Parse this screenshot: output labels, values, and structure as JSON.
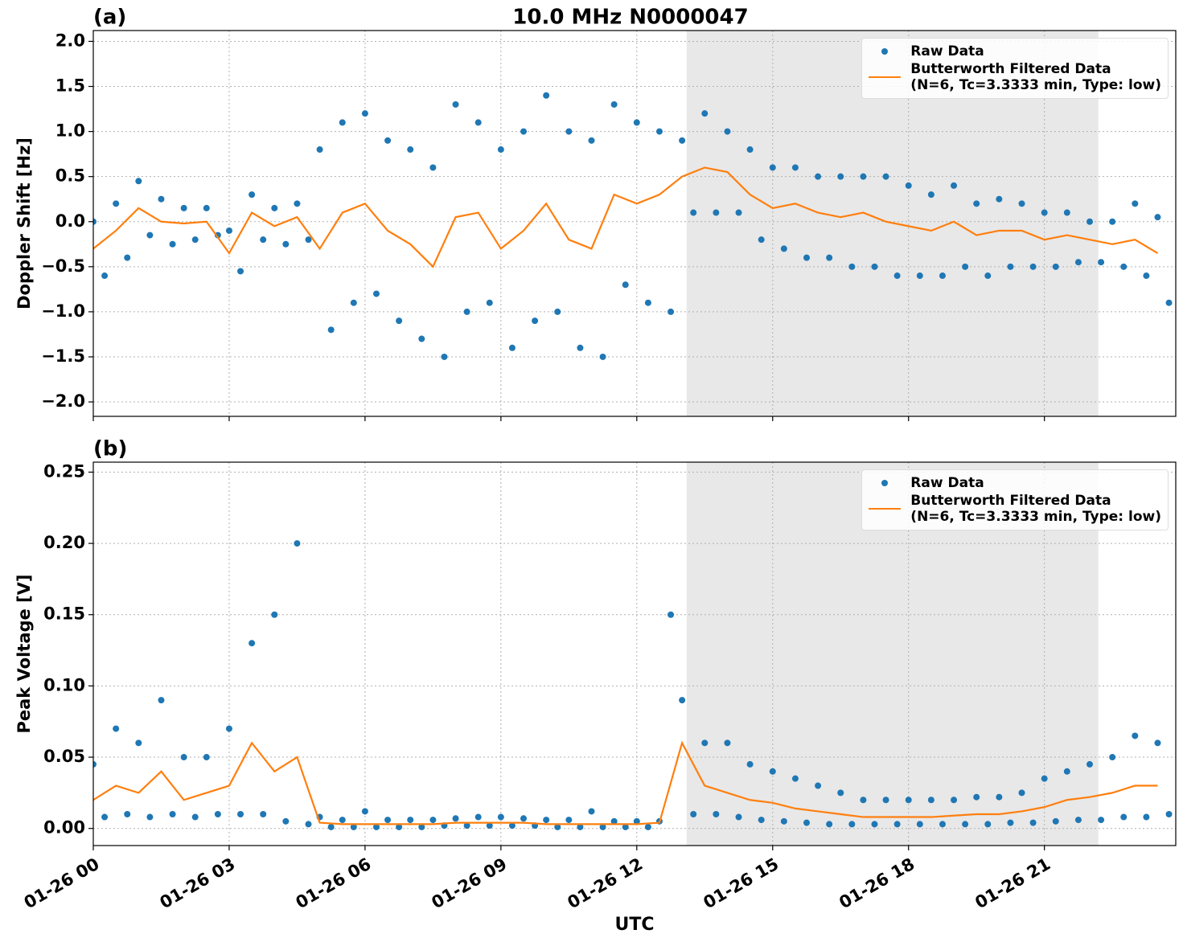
{
  "title": "10.0 MHz N0000047",
  "chart_data": [
    {
      "type": "line",
      "title": "(a)",
      "y_label": "Doppler Shift [Hz]",
      "legend": "upper right",
      "grid": true,
      "shade_x": [
        13.1,
        22.19
      ],
      "shade_color": "#e8e8e8",
      "xlim": [
        0,
        23.9
      ],
      "xticks": [
        0,
        3,
        6,
        9,
        12,
        15,
        18,
        21
      ],
      "ylim": [
        -2.16,
        2.12
      ],
      "yticks": [
        {
          "value": -2.0,
          "label": "−2.0"
        },
        {
          "value": -1.5,
          "label": "−1.5"
        },
        {
          "value": -1.0,
          "label": "−1.0"
        },
        {
          "value": -0.5,
          "label": "−0.5"
        },
        {
          "value": 0.0,
          "label": "0.0"
        },
        {
          "value": 0.5,
          "label": "0.5"
        },
        {
          "value": 1.0,
          "label": "1.0"
        },
        {
          "value": 1.5,
          "label": "1.5"
        },
        {
          "value": 2.0,
          "label": "2.0"
        }
      ],
      "series": [
        {
          "name": "Raw Data",
          "type": "scatter",
          "color": "#1f77b4",
          "x": [
            0,
            0.25,
            0.5,
            0.75,
            1,
            1.25,
            1.5,
            1.75,
            2,
            2.25,
            2.5,
            2.75,
            3,
            3.25,
            3.5,
            3.75,
            4,
            4.25,
            4.5,
            4.75,
            5,
            5.25,
            5.5,
            5.75,
            6,
            6.25,
            6.5,
            6.75,
            7,
            7.25,
            7.5,
            7.75,
            8,
            8.25,
            8.5,
            8.75,
            9,
            9.25,
            9.5,
            9.75,
            10,
            10.25,
            10.5,
            10.75,
            11,
            11.25,
            11.5,
            11.75,
            12,
            12.25,
            12.5,
            12.75,
            13,
            13.25,
            13.5,
            13.75,
            14,
            14.25,
            14.5,
            14.75,
            15,
            15.25,
            15.5,
            15.75,
            16,
            16.25,
            16.5,
            16.75,
            17,
            17.25,
            17.5,
            17.75,
            18,
            18.25,
            18.5,
            18.75,
            19,
            19.25,
            19.5,
            19.75,
            20,
            20.25,
            20.5,
            20.75,
            21,
            21.25,
            21.5,
            21.75,
            22,
            22.25,
            22.5,
            22.75,
            23,
            23.25,
            23.5,
            23.75
          ],
          "values": [
            0.0,
            -0.6,
            0.2,
            -0.4,
            0.45,
            -0.15,
            0.25,
            -0.25,
            0.15,
            -0.2,
            0.15,
            -0.15,
            -0.1,
            -0.55,
            0.3,
            -0.2,
            0.15,
            -0.25,
            0.2,
            -0.2,
            0.8,
            -1.2,
            1.1,
            -0.9,
            1.2,
            -0.8,
            0.9,
            -1.1,
            0.8,
            -1.3,
            0.6,
            -1.5,
            1.3,
            -1.0,
            1.1,
            -0.9,
            0.8,
            -1.4,
            1.0,
            -1.1,
            1.4,
            -1.0,
            1.0,
            -1.4,
            0.9,
            -1.5,
            1.3,
            -0.7,
            1.1,
            -0.9,
            1.0,
            -1.0,
            0.9,
            0.1,
            1.2,
            0.1,
            1.0,
            0.1,
            0.8,
            -0.2,
            0.6,
            -0.3,
            0.6,
            -0.4,
            0.5,
            -0.4,
            0.5,
            -0.5,
            0.5,
            -0.5,
            0.5,
            -0.6,
            0.4,
            -0.6,
            0.3,
            -0.6,
            0.4,
            -0.5,
            0.2,
            -0.6,
            0.25,
            -0.5,
            0.2,
            -0.5,
            0.1,
            -0.5,
            0.1,
            -0.45,
            0.0,
            -0.45,
            0.0,
            -0.5,
            0.2,
            -0.6,
            0.05,
            -0.9
          ]
        },
        {
          "name": "Butterworth Filtered Data\n(N=6, Tc=3.3333 min, Type: low)",
          "type": "line",
          "color": "#ff7f0e",
          "x": [
            0,
            0.5,
            1,
            1.5,
            2,
            2.5,
            3,
            3.5,
            4,
            4.5,
            5,
            5.5,
            6,
            6.5,
            7,
            7.5,
            8,
            8.5,
            9,
            9.5,
            10,
            10.5,
            11,
            11.5,
            12,
            12.5,
            13,
            13.5,
            14,
            14.5,
            15,
            15.5,
            16,
            16.5,
            17,
            17.5,
            18,
            18.5,
            19,
            19.5,
            20,
            20.5,
            21,
            21.5,
            22,
            22.5,
            23,
            23.5
          ],
          "values": [
            -0.3,
            -0.1,
            0.15,
            0.0,
            -0.02,
            0.0,
            -0.35,
            0.1,
            -0.05,
            0.05,
            -0.3,
            0.1,
            0.2,
            -0.1,
            -0.25,
            -0.5,
            0.05,
            0.1,
            -0.3,
            -0.1,
            0.2,
            -0.2,
            -0.3,
            0.3,
            0.2,
            0.3,
            0.5,
            0.6,
            0.55,
            0.3,
            0.15,
            0.2,
            0.1,
            0.05,
            0.1,
            0.0,
            -0.05,
            -0.1,
            0.0,
            -0.15,
            -0.1,
            -0.1,
            -0.2,
            -0.15,
            -0.2,
            -0.25,
            -0.2,
            -0.35
          ]
        }
      ]
    },
    {
      "type": "line",
      "title": "(b)",
      "y_label": "Peak Voltage [V]",
      "x_label": "UTC",
      "legend": "upper right",
      "grid": true,
      "shade_x": [
        13.1,
        22.19
      ],
      "shade_color": "#e8e8e8",
      "xlim": [
        0,
        23.9
      ],
      "xticks": [
        {
          "value": 0,
          "label": "01-26 00"
        },
        {
          "value": 3,
          "label": "01-26 03"
        },
        {
          "value": 6,
          "label": "01-26 06"
        },
        {
          "value": 9,
          "label": "01-26 09"
        },
        {
          "value": 12,
          "label": "01-26 12"
        },
        {
          "value": 15,
          "label": "01-26 15"
        },
        {
          "value": 18,
          "label": "01-26 18"
        },
        {
          "value": 21,
          "label": "01-26 21"
        }
      ],
      "ylim": [
        -0.012,
        0.257
      ],
      "yticks": [
        {
          "value": 0,
          "label": "0.00"
        },
        {
          "value": 0.05,
          "label": "0.05"
        },
        {
          "value": 0.1,
          "label": "0.10"
        },
        {
          "value": 0.15,
          "label": "0.15"
        },
        {
          "value": 0.2,
          "label": "0.20"
        },
        {
          "value": 0.25,
          "label": "0.25"
        }
      ],
      "series": [
        {
          "name": "Raw Data",
          "type": "scatter",
          "color": "#1f77b4",
          "x": [
            0,
            0.25,
            0.5,
            0.75,
            1,
            1.25,
            1.5,
            1.75,
            2,
            2.25,
            2.5,
            2.75,
            3,
            3.25,
            3.5,
            3.75,
            4,
            4.25,
            4.5,
            4.75,
            5,
            5.25,
            5.5,
            5.75,
            6,
            6.25,
            6.5,
            6.75,
            7,
            7.25,
            7.5,
            7.75,
            8,
            8.25,
            8.5,
            8.75,
            9,
            9.25,
            9.5,
            9.75,
            10,
            10.25,
            10.5,
            10.75,
            11,
            11.25,
            11.5,
            11.75,
            12,
            12.25,
            12.5,
            12.75,
            13,
            13.25,
            13.5,
            13.75,
            14,
            14.25,
            14.5,
            14.75,
            15,
            15.25,
            15.5,
            15.75,
            16,
            16.25,
            16.5,
            16.75,
            17,
            17.25,
            17.5,
            17.75,
            18,
            18.25,
            18.5,
            18.75,
            19,
            19.25,
            19.5,
            19.75,
            20,
            20.25,
            20.5,
            20.75,
            21,
            21.25,
            21.5,
            21.75,
            22,
            22.25,
            22.5,
            22.75,
            23,
            23.25,
            23.5,
            23.75
          ],
          "values": [
            0.045,
            0.008,
            0.07,
            0.01,
            0.06,
            0.008,
            0.09,
            0.01,
            0.05,
            0.008,
            0.05,
            0.01,
            0.07,
            0.01,
            0.13,
            0.01,
            0.15,
            0.005,
            0.2,
            0.003,
            0.008,
            0.001,
            0.006,
            0.001,
            0.012,
            0.001,
            0.006,
            0.001,
            0.006,
            0.001,
            0.006,
            0.002,
            0.007,
            0.002,
            0.008,
            0.002,
            0.008,
            0.002,
            0.007,
            0.002,
            0.006,
            0.001,
            0.006,
            0.001,
            0.012,
            0.001,
            0.005,
            0.001,
            0.005,
            0.001,
            0.005,
            0.15,
            0.09,
            0.01,
            0.06,
            0.01,
            0.06,
            0.008,
            0.045,
            0.006,
            0.04,
            0.005,
            0.035,
            0.004,
            0.03,
            0.003,
            0.025,
            0.003,
            0.02,
            0.003,
            0.02,
            0.003,
            0.02,
            0.003,
            0.02,
            0.003,
            0.02,
            0.003,
            0.022,
            0.003,
            0.022,
            0.004,
            0.025,
            0.004,
            0.035,
            0.005,
            0.04,
            0.006,
            0.045,
            0.006,
            0.05,
            0.008,
            0.065,
            0.008,
            0.06,
            0.01
          ]
        },
        {
          "name": "Butterworth Filtered Data\n(N=6, Tc=3.3333 min, Type: low)",
          "type": "line",
          "color": "#ff7f0e",
          "x": [
            0,
            0.5,
            1,
            1.5,
            2,
            2.5,
            3,
            3.5,
            4,
            4.5,
            5,
            5.5,
            6,
            6.5,
            7,
            7.5,
            8,
            8.5,
            9,
            9.5,
            10,
            10.5,
            11,
            11.5,
            12,
            12.5,
            13,
            13.5,
            14,
            14.5,
            15,
            15.5,
            16,
            16.5,
            17,
            17.5,
            18,
            18.5,
            19,
            19.5,
            20,
            20.5,
            21,
            21.5,
            22,
            22.5,
            23,
            23.5
          ],
          "values": [
            0.02,
            0.03,
            0.025,
            0.04,
            0.02,
            0.025,
            0.03,
            0.06,
            0.04,
            0.05,
            0.004,
            0.003,
            0.003,
            0.003,
            0.003,
            0.003,
            0.004,
            0.004,
            0.004,
            0.004,
            0.003,
            0.003,
            0.003,
            0.003,
            0.003,
            0.004,
            0.06,
            0.03,
            0.025,
            0.02,
            0.018,
            0.014,
            0.012,
            0.01,
            0.008,
            0.008,
            0.008,
            0.008,
            0.009,
            0.01,
            0.01,
            0.012,
            0.015,
            0.02,
            0.022,
            0.025,
            0.03,
            0.03
          ]
        }
      ]
    }
  ]
}
